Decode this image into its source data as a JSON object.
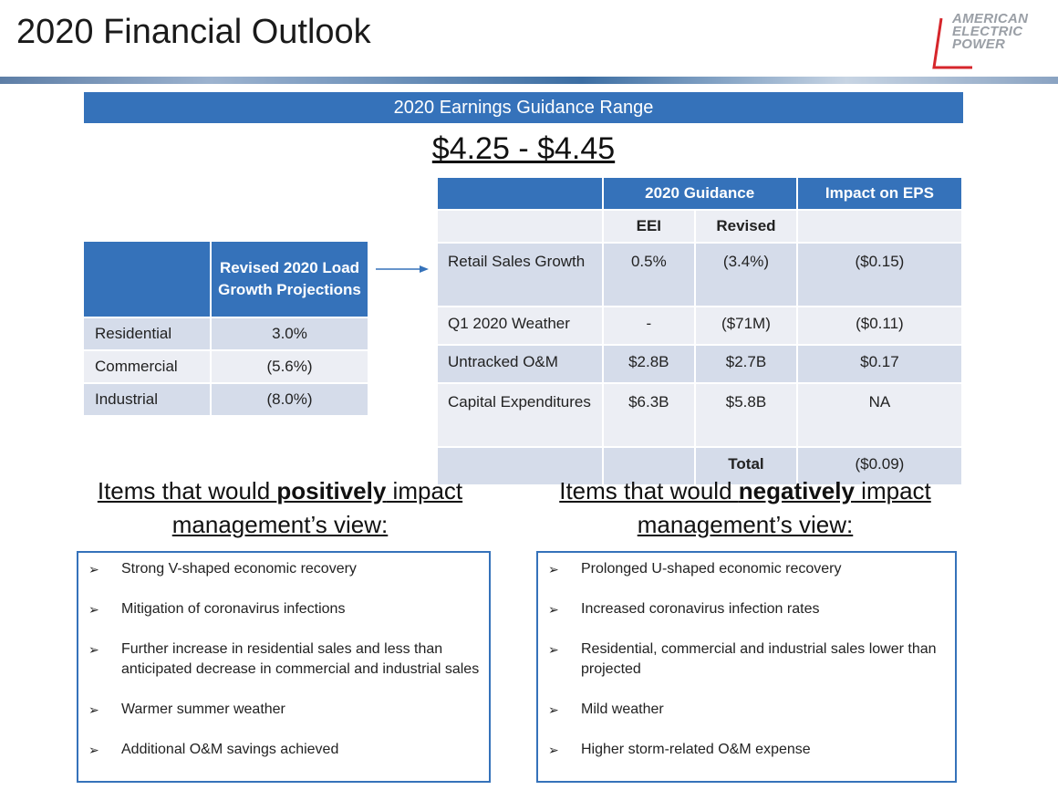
{
  "page_title": "2020 Financial Outlook",
  "logo": {
    "line1": "AMERICAN",
    "line2": "ELECTRIC",
    "line3": "POWER"
  },
  "guidance_bar": "2020 Earnings Guidance Range",
  "guidance_range": "$4.25 - $4.45",
  "load_table": {
    "header": "Revised 2020 Load Growth Projections",
    "rows": [
      {
        "label": "Residential",
        "value": "3.0%"
      },
      {
        "label": "Commercial",
        "value": "(5.6%)"
      },
      {
        "label": "Industrial",
        "value": "(8.0%)"
      }
    ]
  },
  "main_table": {
    "header_guidance": "2020 Guidance",
    "header_impact": "Impact on EPS",
    "sub_eei": "EEI",
    "sub_revised": "Revised",
    "rows": [
      {
        "label": "Retail Sales Growth",
        "eei": "0.5%",
        "revised": "(3.4%)",
        "impact": "($0.15)"
      },
      {
        "label": "Q1 2020 Weather",
        "eei": "-",
        "revised": "($71M)",
        "impact": "($0.11)"
      },
      {
        "label": "Untracked O&M",
        "eei": "$2.8B",
        "revised": "$2.7B",
        "impact": "$0.17"
      },
      {
        "label": "Capital Expenditures",
        "eei": "$6.3B",
        "revised": "$5.8B",
        "impact": "NA"
      }
    ],
    "total_label": "Total",
    "total_value": "($0.09)"
  },
  "positive": {
    "heading_pre": "Items that would ",
    "heading_bold": "positively",
    "heading_post": " impact",
    "heading_line2": "management’s view:",
    "items": [
      "Strong V-shaped economic recovery",
      "Mitigation of coronavirus infections",
      "Further increase in residential sales and less than anticipated decrease in commercial and industrial sales",
      "Warmer summer weather",
      "Additional O&M savings achieved"
    ]
  },
  "negative": {
    "heading_pre": "Items that would ",
    "heading_bold": "negatively",
    "heading_post": " impact",
    "heading_line2": "management’s view:",
    "items": [
      "Prolonged U-shaped economic recovery",
      "Increased coronavirus infection rates",
      "Residential, commercial and industrial sales lower than projected",
      "Mild weather",
      "Higher storm-related O&M expense"
    ]
  },
  "bullet_glyph": "➢",
  "colors": {
    "accent_blue": "#3572ba",
    "row_dark": "#d5dcea",
    "row_light": "#eceef4",
    "logo_red": "#d6262b"
  }
}
